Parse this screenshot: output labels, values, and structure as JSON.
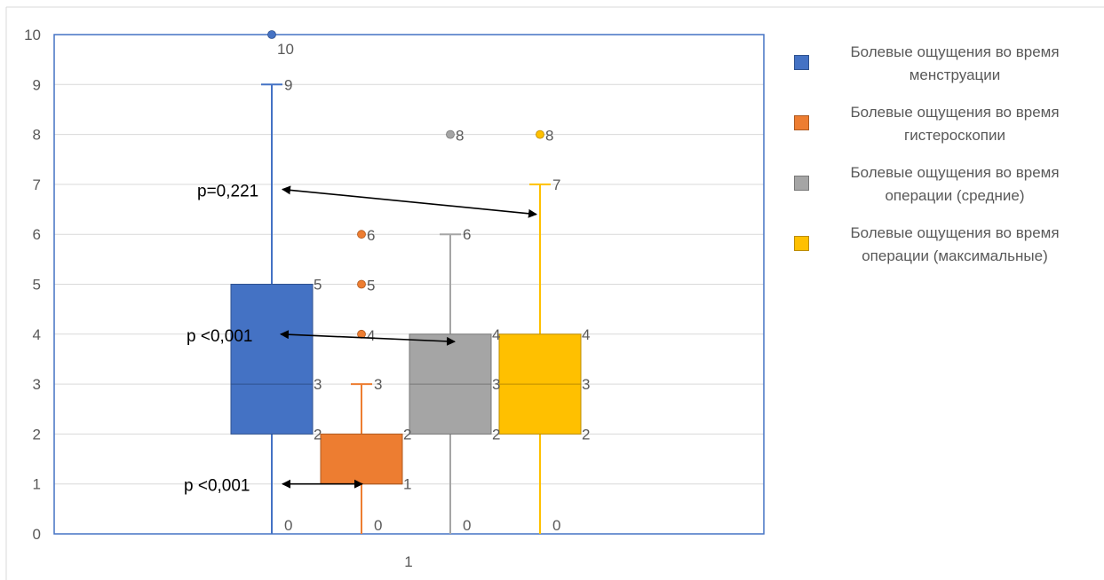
{
  "chart_data": {
    "type": "boxplot",
    "categories": [
      "1"
    ],
    "ylim": [
      0,
      10
    ],
    "y_ticks": [
      0,
      1,
      2,
      3,
      4,
      5,
      6,
      7,
      8,
      9,
      10
    ],
    "grid": true,
    "legend_position": "right",
    "series": [
      {
        "name": "Болевые ощущения во время менструации",
        "color": "#4472C4",
        "min": 0,
        "q1": 2,
        "median": 3,
        "q3": 5,
        "max": 9,
        "outliers": [
          10
        ],
        "labels": [
          "10",
          "9",
          "5",
          "3",
          "2",
          "0"
        ]
      },
      {
        "name": "Болевые ощущения во время гистероскопии",
        "color": "#ED7D31",
        "min": 0,
        "q1": 1,
        "median": 1,
        "q3": 2,
        "max": 3,
        "outliers": [
          4,
          5,
          6
        ],
        "labels": [
          "6",
          "5",
          "4",
          "3",
          "2",
          "1",
          "0"
        ]
      },
      {
        "name": "Болевые ощущения во время операции (средние)",
        "color": "#A5A5A5",
        "min": 0,
        "q1": 2,
        "median": 3,
        "q3": 4,
        "max": 6,
        "outliers": [
          8
        ],
        "labels": [
          "8",
          "6",
          "4",
          "3",
          "2",
          "0"
        ]
      },
      {
        "name": "Болевые ощущения во время операции (максимальные)",
        "color": "#FFC000",
        "min": 0,
        "q1": 2,
        "median": 3,
        "q3": 4,
        "max": 7,
        "outliers": [
          8
        ],
        "labels": [
          "8",
          "7",
          "4",
          "3",
          "2",
          "0"
        ]
      }
    ],
    "annotations": [
      {
        "text": "p=0,221",
        "from_series": 0,
        "to_series": 3,
        "y_from": 6.9,
        "y_to": 6.4
      },
      {
        "text": "p <0,001",
        "from_series": 0,
        "to_series": 2,
        "y_from": 4.0,
        "y_to": 3.85
      },
      {
        "text": "p <0,001",
        "from_series": 0,
        "to_series": 1,
        "y_from": 1.0,
        "y_to": 1.0
      }
    ]
  },
  "legend": {
    "items": [
      {
        "line1": "Болевые ощущения во время",
        "line2": "менструации",
        "color": "#4472C4",
        "border": "#2F528F"
      },
      {
        "line1": "Болевые ощущения во время",
        "line2": "гистероскопии",
        "color": "#ED7D31",
        "border": "#AE5A21"
      },
      {
        "line1": "Болевые ощущения во время",
        "line2": "операции (средние)",
        "color": "#A5A5A5",
        "border": "#787878"
      },
      {
        "line1": "Болевые ощущения во время",
        "line2": "операции (максимальные)",
        "color": "#FFC000",
        "border": "#BC8C00"
      }
    ]
  }
}
